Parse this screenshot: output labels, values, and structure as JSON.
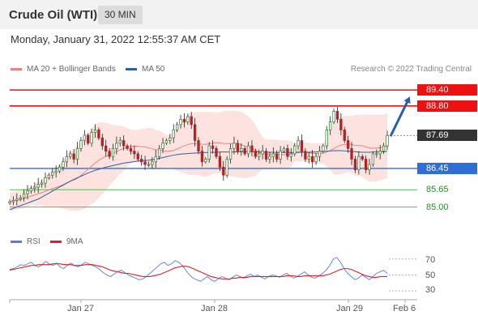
{
  "header": {
    "title": "Crude Oil (WTI)",
    "timeframe": "30 MIN"
  },
  "datetime": "Monday, January 31, 2022 12:55:37 AM CET",
  "legend": {
    "ma20": "MA 20 + Bollinger Bands",
    "ma50": "MA 50",
    "credit": "Research © 2022 Trading Central"
  },
  "rsi_legend": {
    "rsi": "RSI",
    "ma9": "9MA"
  },
  "colors": {
    "candle": "#b22222",
    "bollinger_fill": "#fde3e0",
    "ma20": "#f08080",
    "ma50": "#2f5f9e",
    "resistance": "#ee1111",
    "support_blue": "#2f6ed6",
    "support_green": "#5cb85c",
    "rsi": "#5b7bd5",
    "rsi_ma": "#dd2222",
    "arrow": "#2a5ea8"
  },
  "chart_data": [
    {
      "type": "candlestick",
      "title": "Crude Oil (WTI)",
      "timeframe": "30 MIN",
      "x_dates": [
        "Jan 27",
        "Jan 28",
        "Jan 29",
        "Feb 6"
      ],
      "ylim": [
        84.5,
        89.8
      ],
      "last_price": 87.69,
      "levels": [
        {
          "value": 89.4,
          "label": "89.40",
          "kind": "resistance"
        },
        {
          "value": 88.8,
          "label": "88.80",
          "kind": "resistance"
        },
        {
          "value": 87.69,
          "label": "87.69",
          "kind": "last"
        },
        {
          "value": 86.45,
          "label": "86.45",
          "kind": "support"
        },
        {
          "value": 85.65,
          "label": "85.65",
          "kind": "support2"
        },
        {
          "value": 85.0,
          "label": "85.00",
          "kind": "support3"
        }
      ],
      "forecast": {
        "from": 87.69,
        "to": 89.4
      },
      "closes": [
        85.2,
        85.25,
        85.3,
        85.35,
        85.5,
        85.6,
        85.7,
        85.75,
        85.85,
        85.9,
        86.1,
        86.2,
        86.3,
        86.35,
        86.5,
        86.7,
        86.9,
        87.0,
        86.8,
        87.2,
        87.5,
        87.7,
        87.4,
        87.8,
        87.9,
        87.6,
        87.3,
        87.1,
        86.9,
        87.2,
        87.4,
        87.5,
        87.3,
        87.2,
        87.1,
        87.0,
        86.8,
        86.7,
        86.6,
        86.6,
        86.7,
        86.9,
        87.2,
        87.4,
        87.5,
        87.6,
        87.9,
        88.1,
        88.3,
        88.2,
        88.4,
        88.1,
        87.5,
        87.1,
        86.7,
        86.8,
        87.3,
        87.2,
        86.9,
        86.5,
        86.2,
        86.8,
        87.2,
        87.4,
        87.1,
        87.2,
        87.0,
        87.3,
        87.1,
        86.9,
        87.0,
        87.1,
        86.8,
        86.9,
        87.0,
        86.8,
        87.1,
        87.2,
        86.9,
        87.0,
        87.3,
        87.5,
        87.1,
        86.8,
        86.9,
        86.7,
        86.9,
        87.1,
        87.3,
        87.9,
        88.2,
        88.6,
        88.3,
        87.9,
        87.5,
        87.2,
        86.8,
        86.4,
        86.9,
        86.8,
        86.4,
        86.6,
        87.0,
        87.0,
        87.1,
        87.3,
        87.69
      ],
      "sma50": [
        84.9,
        84.95,
        85.0,
        85.05,
        85.1,
        85.15,
        85.2,
        85.25,
        85.3,
        85.37,
        85.45,
        85.52,
        85.6,
        85.68,
        85.75,
        85.82,
        85.9,
        85.97,
        86.04,
        86.1,
        86.16,
        86.22,
        86.28,
        86.33,
        86.38,
        86.42,
        86.46,
        86.5,
        86.53,
        86.56,
        86.59,
        86.62,
        86.65,
        86.67,
        86.69,
        86.71,
        86.73,
        86.74,
        86.75,
        86.76,
        86.78,
        86.8,
        86.83,
        86.86,
        86.89,
        86.92,
        86.95,
        86.97,
        86.99,
        87.0,
        87.01,
        87.02,
        87.03,
        87.04,
        87.04,
        87.05,
        87.05,
        87.06,
        87.06,
        87.07,
        87.07,
        87.07,
        87.07,
        87.07,
        87.08,
        87.08,
        87.08,
        87.08,
        87.08,
        87.07,
        87.07,
        87.07,
        87.06,
        87.06,
        87.06,
        87.05,
        87.05,
        87.05,
        87.05,
        87.05,
        87.05,
        87.05,
        87.06,
        87.06,
        87.06,
        87.07,
        87.07,
        87.08,
        87.09,
        87.1,
        87.11,
        87.12,
        87.12,
        87.12,
        87.11,
        87.1,
        87.09,
        87.08,
        87.07,
        87.06,
        87.06,
        87.06,
        87.07,
        87.07,
        87.07,
        87.08,
        87.09
      ]
    },
    {
      "type": "line",
      "title": "RSI",
      "ylim": [
        25,
        78
      ],
      "y_ticks": [
        30,
        50,
        70
      ],
      "series": [
        {
          "name": "RSI",
          "values": [
            57,
            58,
            60,
            63,
            62,
            64,
            66,
            62,
            60,
            63,
            67,
            64,
            62,
            65,
            60,
            58,
            62,
            65,
            62,
            60,
            63,
            66,
            64,
            62,
            60,
            57,
            53,
            50,
            48,
            51,
            54,
            56,
            53,
            50,
            48,
            46,
            44,
            45,
            48,
            52,
            56,
            60,
            64,
            66,
            62,
            64,
            68,
            66,
            62,
            56,
            50,
            46,
            44,
            42,
            45,
            48,
            44,
            42,
            45,
            48,
            46,
            44,
            47,
            50,
            48,
            46,
            49,
            51,
            48,
            50,
            47,
            45,
            48,
            50,
            49,
            47,
            50,
            52,
            49,
            46,
            48,
            51,
            54,
            50,
            47,
            46,
            49,
            52,
            56,
            62,
            70,
            72,
            66,
            58,
            52,
            48,
            44,
            46,
            50,
            47,
            44,
            48,
            52,
            54,
            56,
            52
          ]
        },
        {
          "name": "9MA",
          "values": [
            56,
            57,
            58,
            59,
            60,
            61,
            62,
            62,
            63,
            63,
            63,
            63,
            64,
            64,
            64,
            63,
            63,
            63,
            62,
            62,
            62,
            63,
            63,
            63,
            62,
            61,
            60,
            58,
            56,
            55,
            54,
            53,
            52,
            52,
            51,
            50,
            49,
            48,
            48,
            48,
            49,
            50,
            51,
            53,
            55,
            57,
            59,
            60,
            61,
            61,
            60,
            58,
            56,
            54,
            52,
            50,
            48,
            47,
            46,
            45,
            45,
            45,
            46,
            46,
            47,
            47,
            47,
            48,
            48,
            48,
            48,
            48,
            48,
            48,
            48,
            48,
            48,
            49,
            49,
            49,
            48,
            48,
            49,
            49,
            49,
            49,
            49,
            49,
            50,
            51,
            53,
            55,
            57,
            58,
            58,
            57,
            55,
            53,
            51,
            49,
            48,
            47,
            47,
            48,
            48,
            48
          ]
        }
      ]
    }
  ],
  "y_axis": {
    "rsi_ticks": [
      "70",
      "50",
      "30"
    ]
  }
}
